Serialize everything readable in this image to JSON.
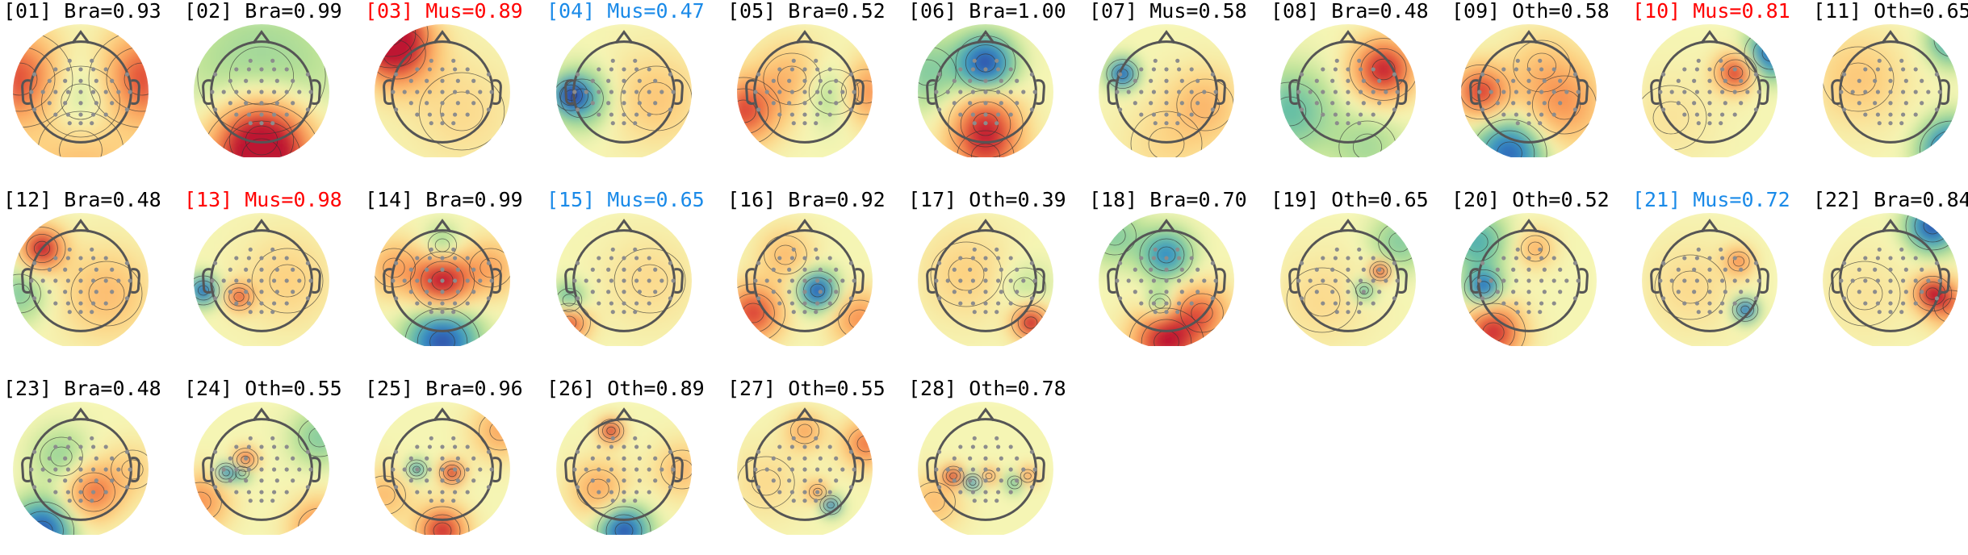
{
  "colors": {
    "label_default": "#000000",
    "label_red": "#ff0000",
    "label_blue": "#1a8ae8",
    "head_outline": "#555555",
    "electrode": "#8c8c8c",
    "contour": "#333333"
  },
  "components": [
    {
      "index": "01",
      "label": "[01] Bra=0.93",
      "color": "default",
      "pattern": [
        [
          0.0,
          0.15,
          -0.45,
          0.55
        ],
        [
          -0.95,
          -0.2,
          0.8,
          0.5
        ],
        [
          0.95,
          -0.2,
          0.8,
          0.5
        ],
        [
          0.0,
          0.9,
          0.4,
          0.6
        ]
      ]
    },
    {
      "index": "02",
      "label": "[02] Bra=0.99",
      "color": "default",
      "pattern": [
        [
          0.0,
          -0.25,
          -0.25,
          0.9
        ],
        [
          0.0,
          1.0,
          1.0,
          0.55
        ],
        [
          0.0,
          0.75,
          0.55,
          0.45
        ]
      ]
    },
    {
      "index": "03",
      "label": "[03] Mus=0.89",
      "color": "red",
      "pattern": [
        [
          -0.8,
          -0.9,
          1.0,
          0.35
        ],
        [
          -0.7,
          -0.6,
          0.6,
          0.4
        ],
        [
          0.3,
          0.3,
          0.15,
          0.6
        ]
      ]
    },
    {
      "index": "04",
      "label": "[04] Mus=0.47",
      "color": "blue",
      "pattern": [
        [
          -0.82,
          0.05,
          -1.0,
          0.16
        ],
        [
          -0.65,
          0.1,
          -0.5,
          0.3
        ],
        [
          0.5,
          0.1,
          0.25,
          0.5
        ]
      ]
    },
    {
      "index": "05",
      "label": "[05] Bra=0.52",
      "color": "default",
      "pattern": [
        [
          -0.95,
          0.3,
          0.75,
          0.35
        ],
        [
          -0.2,
          -0.2,
          0.35,
          0.4
        ],
        [
          0.45,
          0.0,
          -0.4,
          0.35
        ],
        [
          0.95,
          0.0,
          0.6,
          0.35
        ]
      ]
    },
    {
      "index": "06",
      "label": "[06] Bra=1.00",
      "color": "default",
      "pattern": [
        [
          0.0,
          -0.45,
          -1.0,
          0.28
        ],
        [
          0.0,
          0.5,
          0.7,
          0.35
        ],
        [
          0.0,
          1.0,
          0.5,
          0.4
        ],
        [
          -0.9,
          -0.3,
          -0.3,
          0.4
        ]
      ]
    },
    {
      "index": "07",
      "label": "[07] Mus=0.58",
      "color": "default",
      "pattern": [
        [
          -0.68,
          -0.28,
          -1.0,
          0.15
        ],
        [
          0.6,
          0.2,
          0.3,
          0.4
        ],
        [
          0.0,
          0.8,
          0.15,
          0.5
        ]
      ]
    },
    {
      "index": "08",
      "label": "[08] Bra=0.48",
      "color": "default",
      "pattern": [
        [
          0.55,
          -0.35,
          0.95,
          0.32
        ],
        [
          -0.9,
          0.3,
          -0.4,
          0.45
        ],
        [
          0.3,
          0.85,
          -0.2,
          0.4
        ]
      ]
    },
    {
      "index": "09",
      "label": "[09] Oth=0.58",
      "color": "default",
      "pattern": [
        [
          -0.75,
          0.0,
          0.8,
          0.28
        ],
        [
          -0.3,
          0.95,
          -0.9,
          0.35
        ],
        [
          0.55,
          0.2,
          0.45,
          0.45
        ],
        [
          0.2,
          -0.4,
          0.2,
          0.4
        ]
      ]
    },
    {
      "index": "10",
      "label": "[10] Mus=0.81",
      "color": "red",
      "pattern": [
        [
          0.4,
          -0.3,
          0.85,
          0.2
        ],
        [
          0.95,
          -0.6,
          -0.9,
          0.25
        ],
        [
          -0.6,
          0.4,
          0.1,
          0.5
        ]
      ]
    },
    {
      "index": "11",
      "label": "[11] Oth=0.65",
      "color": "default",
      "pattern": [
        [
          0.95,
          0.9,
          -1.0,
          0.3
        ],
        [
          0.95,
          -0.8,
          -0.6,
          0.25
        ],
        [
          -0.5,
          -0.2,
          0.25,
          0.5
        ]
      ]
    },
    {
      "index": "12",
      "label": "[12] Bra=0.48",
      "color": "default",
      "pattern": [
        [
          -0.6,
          -0.5,
          1.0,
          0.22
        ],
        [
          0.4,
          0.2,
          0.3,
          0.5
        ],
        [
          -0.95,
          0.2,
          -0.3,
          0.3
        ]
      ]
    },
    {
      "index": "13",
      "label": "[13] Mus=0.98",
      "color": "red",
      "pattern": [
        [
          -0.9,
          0.15,
          -0.95,
          0.15
        ],
        [
          -0.35,
          0.25,
          0.7,
          0.14
        ],
        [
          0.4,
          0.0,
          0.2,
          0.5
        ]
      ]
    },
    {
      "index": "14",
      "label": "[14] Bra=0.99",
      "color": "default",
      "pattern": [
        [
          0.0,
          0.0,
          1.0,
          0.3
        ],
        [
          0.0,
          0.95,
          -1.0,
          0.35
        ],
        [
          0.0,
          -0.55,
          -0.35,
          0.2
        ],
        [
          -0.75,
          -0.2,
          0.4,
          0.3
        ],
        [
          0.75,
          -0.2,
          0.4,
          0.3
        ]
      ]
    },
    {
      "index": "15",
      "label": "[15] Mus=0.65",
      "color": "blue",
      "pattern": [
        [
          -0.85,
          0.65,
          0.8,
          0.2
        ],
        [
          -0.85,
          0.3,
          -0.5,
          0.18
        ],
        [
          0.4,
          0.0,
          0.15,
          0.5
        ]
      ]
    },
    {
      "index": "16",
      "label": "[16] Bra=0.92",
      "color": "default",
      "pattern": [
        [
          0.2,
          0.15,
          -1.0,
          0.2
        ],
        [
          -0.8,
          0.5,
          0.8,
          0.3
        ],
        [
          0.85,
          0.6,
          0.5,
          0.3
        ],
        [
          -0.3,
          -0.4,
          0.3,
          0.3
        ]
      ]
    },
    {
      "index": "17",
      "label": "[17] Oth=0.39",
      "color": "default",
      "pattern": [
        [
          0.7,
          0.65,
          1.0,
          0.18
        ],
        [
          -0.3,
          -0.1,
          0.2,
          0.5
        ],
        [
          0.6,
          0.1,
          -0.15,
          0.3
        ]
      ]
    },
    {
      "index": "18",
      "label": "[18] Bra=0.70",
      "color": "default",
      "pattern": [
        [
          0.0,
          -0.4,
          -0.7,
          0.25
        ],
        [
          -0.1,
          0.35,
          -0.5,
          0.15
        ],
        [
          0.0,
          0.95,
          1.0,
          0.35
        ],
        [
          0.55,
          0.5,
          0.6,
          0.3
        ],
        [
          -0.8,
          -0.7,
          -0.3,
          0.3
        ]
      ]
    },
    {
      "index": "19",
      "label": "[19] Oth=0.65",
      "color": "default",
      "pattern": [
        [
          0.5,
          -0.15,
          1.0,
          0.1
        ],
        [
          0.25,
          0.15,
          -0.5,
          0.12
        ],
        [
          0.8,
          -0.6,
          -0.3,
          0.3
        ],
        [
          -0.4,
          0.3,
          0.15,
          0.5
        ]
      ]
    },
    {
      "index": "20",
      "label": "[20] Oth=0.52",
      "color": "default",
      "pattern": [
        [
          -0.7,
          0.1,
          -0.9,
          0.18
        ],
        [
          -0.55,
          0.8,
          0.9,
          0.3
        ],
        [
          0.1,
          -0.5,
          0.35,
          0.2
        ],
        [
          -0.8,
          -0.6,
          -0.5,
          0.3
        ]
      ]
    },
    {
      "index": "21",
      "label": "[21] Mus=0.72",
      "color": "blue",
      "pattern": [
        [
          0.55,
          0.45,
          -1.0,
          0.12
        ],
        [
          0.45,
          -0.3,
          0.5,
          0.15
        ],
        [
          -0.3,
          0.1,
          0.15,
          0.5
        ]
      ]
    },
    {
      "index": "22",
      "label": "[22] Bra=0.84",
      "color": "default",
      "pattern": [
        [
          0.65,
          -0.85,
          -1.0,
          0.25
        ],
        [
          0.65,
          0.2,
          1.0,
          0.18
        ],
        [
          0.95,
          0.4,
          0.5,
          0.25
        ],
        [
          -0.4,
          0.2,
          0.1,
          0.5
        ]
      ]
    },
    {
      "index": "23",
      "label": "[23] Bra=0.48",
      "color": "default",
      "pattern": [
        [
          -0.6,
          0.95,
          -1.0,
          0.3
        ],
        [
          0.2,
          0.35,
          0.6,
          0.3
        ],
        [
          -0.3,
          -0.2,
          -0.25,
          0.3
        ],
        [
          0.8,
          0.0,
          0.2,
          0.3
        ]
      ]
    },
    {
      "index": "24",
      "label": "[24] Oth=0.55",
      "color": "default",
      "pattern": [
        [
          -0.55,
          0.05,
          -0.9,
          0.1
        ],
        [
          -0.3,
          0.05,
          -0.6,
          0.1
        ],
        [
          -0.25,
          -0.15,
          0.8,
          0.12
        ],
        [
          -0.95,
          0.5,
          0.5,
          0.3
        ],
        [
          0.9,
          0.9,
          0.55,
          0.3
        ],
        [
          0.9,
          -0.5,
          -0.3,
          0.3
        ]
      ]
    },
    {
      "index": "25",
      "label": "[25] Bra=0.96",
      "color": "default",
      "pattern": [
        [
          0.15,
          0.05,
          1.0,
          0.12
        ],
        [
          -0.4,
          0.0,
          -0.7,
          0.1
        ],
        [
          0.0,
          0.95,
          0.9,
          0.25
        ],
        [
          0.9,
          -0.6,
          0.4,
          0.3
        ],
        [
          -0.9,
          0.4,
          0.3,
          0.3
        ]
      ]
    },
    {
      "index": "26",
      "label": "[26] Oth=0.89",
      "color": "default",
      "pattern": [
        [
          -0.2,
          -0.6,
          1.0,
          0.12
        ],
        [
          0.0,
          0.95,
          -1.0,
          0.25
        ],
        [
          -0.4,
          0.3,
          0.4,
          0.3
        ],
        [
          0.9,
          0.0,
          0.3,
          0.3
        ]
      ]
    },
    {
      "index": "27",
      "label": "[27] Oth=0.55",
      "color": "default",
      "pattern": [
        [
          0.4,
          0.55,
          -1.0,
          0.1
        ],
        [
          0.2,
          0.35,
          0.5,
          0.12
        ],
        [
          0.0,
          -0.6,
          0.4,
          0.2
        ],
        [
          0.95,
          -0.4,
          0.6,
          0.25
        ],
        [
          -0.6,
          0.2,
          0.15,
          0.4
        ]
      ]
    },
    {
      "index": "28",
      "label": "[28] Oth=0.78",
      "color": "default",
      "pattern": [
        [
          -0.5,
          0.1,
          1.0,
          0.1
        ],
        [
          -0.2,
          0.2,
          -0.9,
          0.09
        ],
        [
          0.05,
          0.1,
          0.6,
          0.09
        ],
        [
          0.45,
          0.2,
          -0.5,
          0.1
        ],
        [
          0.65,
          0.1,
          0.6,
          0.1
        ],
        [
          -0.8,
          0.5,
          0.3,
          0.3
        ]
      ]
    }
  ]
}
